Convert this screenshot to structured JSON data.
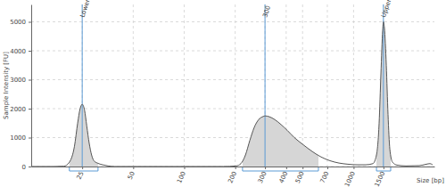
{
  "chart_data": {
    "type": "line",
    "y_label": "Sample Intensity [FU]",
    "x_label": "Size [bp]",
    "log": "x",
    "grid": true,
    "color": "#555555",
    "xlim": [
      12.5,
      3000
    ],
    "ylim": [
      0,
      5600
    ],
    "xticks": [
      25,
      50,
      100,
      200,
      300,
      400,
      500,
      700,
      1000,
      1500
    ],
    "yticks": [
      0,
      1000,
      2000,
      3000,
      4000,
      5000
    ],
    "x": [
      12.5,
      17,
      19.5,
      21,
      22.5,
      23.5,
      24.3,
      25,
      25.8,
      26.6,
      27.5,
      28.4,
      29.3,
      30.7,
      33,
      35.5,
      39,
      90,
      170,
      203,
      216,
      230,
      244,
      259,
      275,
      293,
      300,
      318,
      343,
      373,
      406,
      447,
      505,
      570,
      643,
      726,
      820,
      925,
      1045,
      1180,
      1300,
      1365,
      1415,
      1450,
      1485,
      1500,
      1520,
      1560,
      1597,
      1637,
      1698,
      1803,
      2036,
      2440,
      2690,
      2825,
      2925
    ],
    "values": [
      0,
      0,
      10,
      150,
      700,
      1500,
      2000,
      2150,
      1950,
      1400,
      800,
      400,
      200,
      120,
      60,
      20,
      0,
      0,
      0,
      20,
      100,
      400,
      900,
      1350,
      1620,
      1730,
      1750,
      1720,
      1620,
      1450,
      1250,
      1000,
      750,
      520,
      330,
      200,
      120,
      80,
      60,
      60,
      100,
      400,
      1500,
      3200,
      4700,
      5000,
      4800,
      3500,
      1800,
      600,
      150,
      50,
      20,
      30,
      80,
      100,
      60
    ],
    "annotations": [
      {
        "x": 25,
        "label": "Lower"
      },
      {
        "x": 300,
        "label": "300"
      },
      {
        "x": 1500,
        "label": "Upper"
      }
    ],
    "regions": [
      {
        "from": 21,
        "to": 31
      },
      {
        "from": 221,
        "to": 620
      },
      {
        "from": 1365,
        "to": 1656
      }
    ]
  }
}
